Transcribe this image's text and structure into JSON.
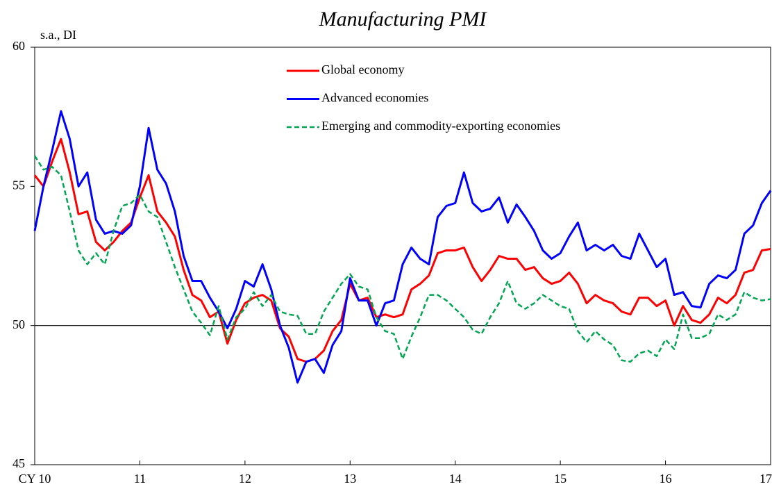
{
  "chart_data": {
    "type": "line",
    "title": "Manufacturing PMI",
    "y_label": "s.a., DI",
    "categories": [
      "CY 10",
      null,
      null,
      null,
      null,
      null,
      null,
      null,
      null,
      null,
      null,
      null,
      "11",
      null,
      null,
      null,
      null,
      null,
      null,
      null,
      null,
      null,
      null,
      null,
      "12",
      null,
      null,
      null,
      null,
      null,
      null,
      null,
      null,
      null,
      null,
      null,
      "13",
      null,
      null,
      null,
      null,
      null,
      null,
      null,
      null,
      null,
      null,
      null,
      "14",
      null,
      null,
      null,
      null,
      null,
      null,
      null,
      null,
      null,
      null,
      null,
      "15",
      null,
      null,
      null,
      null,
      null,
      null,
      null,
      null,
      null,
      null,
      null,
      "16",
      null,
      null,
      null,
      null,
      null,
      null,
      null,
      null,
      null,
      null,
      null,
      "17"
    ],
    "series": [
      {
        "name": "Global economy",
        "color": "#ff0000",
        "dash": false,
        "values": [
          55.4,
          55.0,
          55.9,
          56.7,
          55.5,
          54.0,
          54.1,
          53.0,
          52.7,
          53.0,
          53.4,
          53.7,
          54.6,
          55.4,
          54.1,
          53.7,
          53.2,
          52.0,
          51.1,
          50.9,
          50.3,
          50.5,
          49.35,
          50.2,
          50.8,
          51.0,
          51.1,
          50.9,
          49.9,
          49.6,
          48.8,
          48.7,
          48.8,
          49.1,
          49.8,
          50.2,
          51.5,
          50.9,
          51.0,
          50.3,
          50.4,
          50.3,
          50.4,
          51.3,
          51.5,
          51.8,
          52.6,
          52.7,
          52.7,
          52.8,
          52.1,
          51.6,
          52.0,
          52.5,
          52.4,
          52.4,
          52.0,
          52.1,
          51.7,
          51.5,
          51.6,
          51.9,
          51.5,
          50.8,
          51.1,
          50.9,
          50.8,
          50.5,
          50.4,
          51.0,
          51.0,
          50.7,
          50.9,
          50.0,
          50.7,
          50.2,
          50.1,
          50.4,
          51.0,
          50.8,
          51.1,
          51.9,
          52.0,
          52.7,
          52.75
        ]
      },
      {
        "name": "Advanced economies",
        "color": "#0000ff",
        "dash": false,
        "values": [
          53.4,
          55.0,
          56.3,
          57.7,
          56.7,
          55.0,
          55.5,
          53.8,
          53.3,
          53.4,
          53.3,
          53.6,
          55.0,
          57.1,
          55.6,
          55.1,
          54.1,
          52.5,
          51.6,
          51.6,
          51.0,
          50.5,
          49.9,
          50.6,
          51.6,
          51.4,
          52.2,
          51.3,
          50.0,
          49.2,
          47.95,
          48.7,
          48.8,
          48.3,
          49.3,
          49.8,
          51.7,
          50.9,
          50.9,
          50.0,
          50.8,
          50.9,
          52.2,
          52.8,
          52.4,
          52.2,
          53.9,
          54.3,
          54.4,
          55.5,
          54.4,
          54.1,
          54.2,
          54.6,
          53.7,
          54.35,
          53.9,
          53.4,
          52.7,
          52.4,
          52.6,
          53.2,
          53.7,
          52.7,
          52.9,
          52.7,
          52.9,
          52.5,
          52.4,
          53.3,
          52.7,
          52.1,
          52.4,
          51.1,
          51.2,
          50.7,
          50.65,
          51.5,
          51.8,
          51.7,
          52.0,
          53.3,
          53.6,
          54.4,
          54.85
        ]
      },
      {
        "name": "Emerging and commodity-exporting economies",
        "color": "#00a651",
        "dash": true,
        "values": [
          56.1,
          55.6,
          55.7,
          55.4,
          54.1,
          52.7,
          52.2,
          52.6,
          52.2,
          53.4,
          54.3,
          54.4,
          54.7,
          54.1,
          53.9,
          53.0,
          52.1,
          51.3,
          50.5,
          50.1,
          49.65,
          50.7,
          49.5,
          50.3,
          50.6,
          51.2,
          50.7,
          51.1,
          50.5,
          50.4,
          50.35,
          49.7,
          49.7,
          50.5,
          51.0,
          51.5,
          51.85,
          51.4,
          51.3,
          50.3,
          49.8,
          49.7,
          48.8,
          49.6,
          50.3,
          51.1,
          51.1,
          50.9,
          50.6,
          50.3,
          49.85,
          49.7,
          50.3,
          50.8,
          51.6,
          50.8,
          50.6,
          50.8,
          51.1,
          50.9,
          50.7,
          50.6,
          49.8,
          49.4,
          49.8,
          49.5,
          49.3,
          48.75,
          48.7,
          49.0,
          49.1,
          48.9,
          49.5,
          49.15,
          50.4,
          49.55,
          49.55,
          49.7,
          50.4,
          50.2,
          50.4,
          51.2,
          51.0,
          50.9,
          50.95
        ]
      }
    ],
    "ylim": [
      45,
      60
    ],
    "yticks": [
      45,
      50,
      55,
      60
    ],
    "reference_line": 50,
    "grid": false,
    "legend": "top"
  }
}
